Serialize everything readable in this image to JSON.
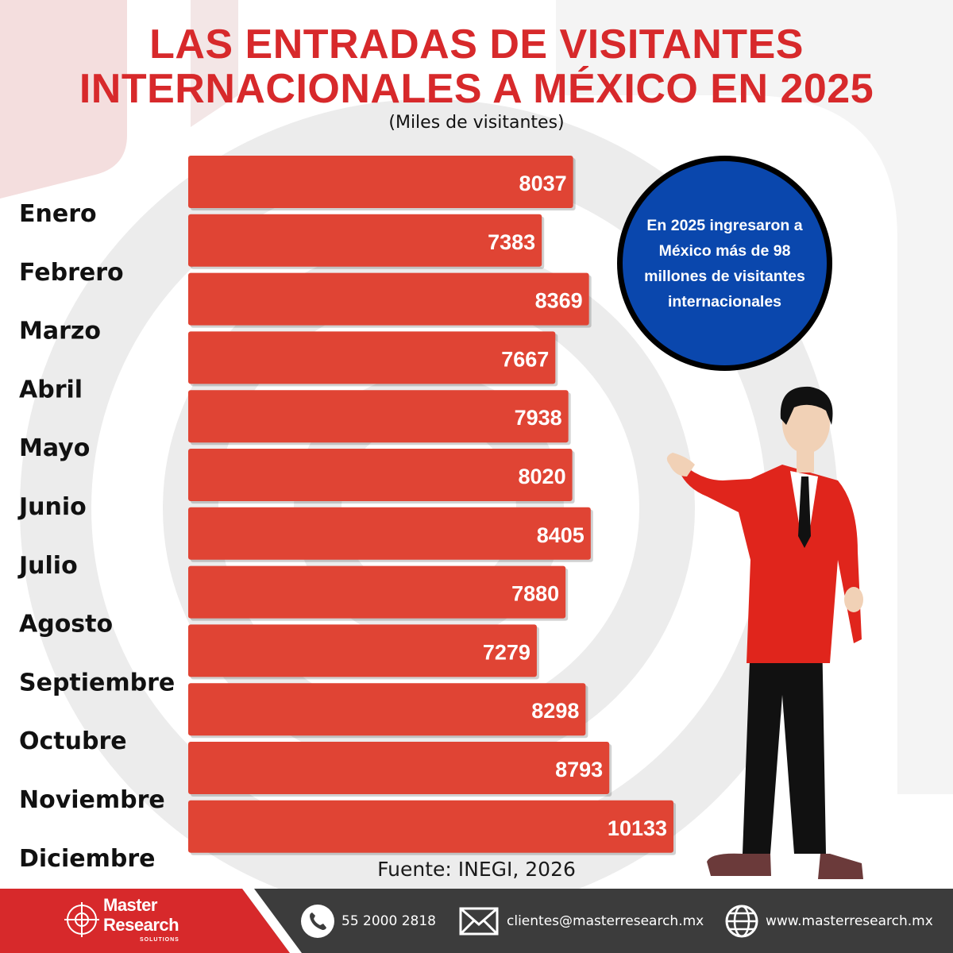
{
  "header": {
    "title_line1": "LAS ENTRADAS DE VISITANTES",
    "title_line2": "INTERNACIONALES A MÉXICO EN 2025",
    "subtitle": "(Miles de visitantes)"
  },
  "chart_data": {
    "type": "bar",
    "orientation": "horizontal",
    "title": "LAS ENTRADAS DE VISITANTES INTERNACIONALES A MÉXICO EN 2025",
    "subtitle": "(Miles de visitantes)",
    "categories": [
      "Enero",
      "Febrero",
      "Marzo",
      "Abril",
      "Mayo",
      "Junio",
      "Julio",
      "Agosto",
      "Septiembre",
      "Octubre",
      "Noviembre",
      "Diciembre"
    ],
    "values": [
      8037,
      7383,
      8369,
      7667,
      7938,
      8020,
      8405,
      7880,
      7279,
      8298,
      8793,
      10133
    ],
    "data_labels": [
      "8037",
      "7383",
      "8369",
      "7667",
      "7938",
      "8020",
      "8405",
      "7880",
      "7279",
      "8298",
      "8793",
      "10133"
    ],
    "grid": false,
    "bar_color": "#e04434"
  },
  "callout": {
    "text": "En 2025 ingresaron a México más de 98 millones de visitantes internacionales",
    "color": "#0a47ad"
  },
  "source": "Fuente: INEGI, 2026",
  "footer": {
    "brand_line1": "Master",
    "brand_line2": "Research",
    "brand_tag": "SOLUTIONS",
    "phone": "55 2000 2818",
    "email": "clientes@masterresearch.mx",
    "website": "www.masterresearch.mx",
    "phone_icon": "phone-icon",
    "email_icon": "envelope-icon",
    "web_icon": "globe-icon",
    "accent": "#d7292b"
  }
}
